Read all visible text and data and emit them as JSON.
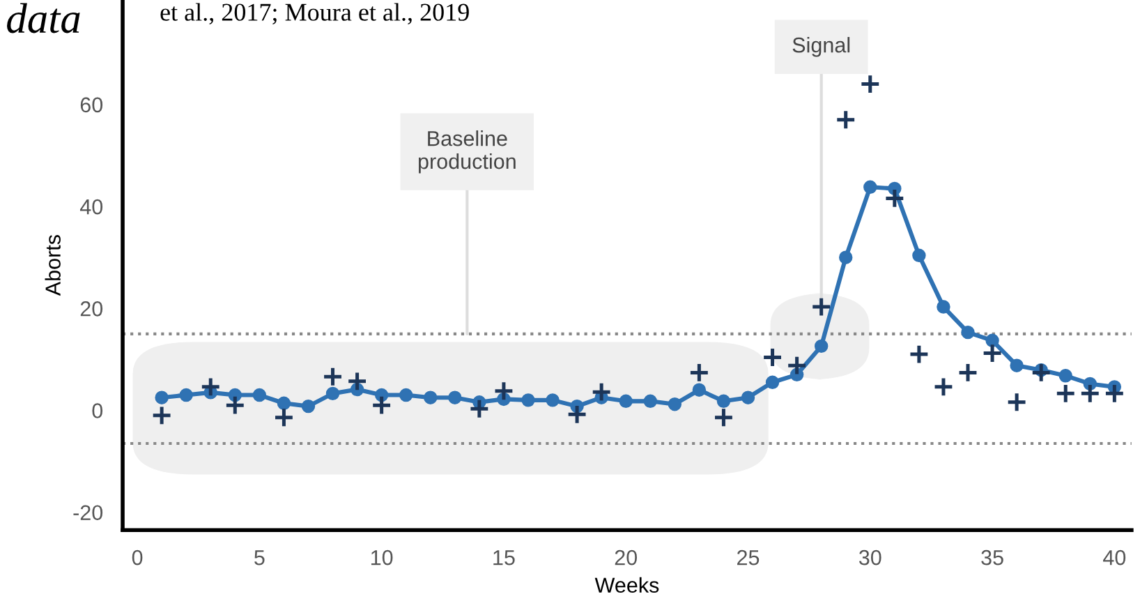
{
  "chart_data": {
    "type": "line",
    "xlabel": "Weeks",
    "ylabel": "Aborts",
    "annotations": [
      {
        "text": "Baseline\nproduction",
        "x": 13.5,
        "y": 15
      },
      {
        "text": "Signal",
        "x": 28,
        "y": 20
      },
      "data",
      "et al., 2017; Moura et al., 2019"
    ],
    "series": [
      {
        "color": "#2f72b3",
        "marker": "circle",
        "x": [
          1,
          2,
          3,
          4,
          5,
          6,
          7,
          8,
          9,
          10,
          11,
          12,
          13,
          14,
          15,
          16,
          17,
          18,
          19,
          20,
          21,
          22,
          23,
          24,
          25,
          26,
          27,
          28,
          29,
          30,
          31,
          32,
          33,
          34,
          35,
          36,
          37,
          38,
          39,
          40
        ],
        "values": [
          2.5,
          3,
          3.5,
          3,
          3,
          1.4,
          0.8,
          3.3,
          4.1,
          3,
          3,
          2.5,
          2.5,
          1.6,
          2.2,
          2,
          2,
          0.8,
          2.5,
          1.8,
          1.8,
          1.2,
          4,
          1.8,
          2.5,
          5.5,
          7,
          12.6,
          30,
          43.8,
          43.5,
          30.4,
          20.3,
          15.3,
          13.7,
          8.8,
          7.9,
          6.8,
          5.2,
          4.6
        ]
      },
      {
        "type": "scatter",
        "color": "#1c3558",
        "marker": "cross",
        "x": [
          1,
          3,
          4,
          6,
          8,
          9,
          10,
          14,
          15,
          18,
          19,
          23,
          24,
          26,
          27,
          28,
          29,
          30,
          31,
          32,
          33,
          34,
          35,
          36,
          37,
          38,
          39,
          40
        ],
        "values": [
          -1,
          4.6,
          1,
          -1.4,
          6.6,
          5.7,
          1,
          0.3,
          3.8,
          -0.8,
          3.6,
          7.4,
          -1.4,
          10.4,
          8.8,
          20.3,
          57,
          64,
          41.6,
          11,
          4.6,
          7.4,
          11.2,
          1.6,
          7.4,
          3.3,
          3.3,
          3.3
        ]
      }
    ],
    "ref_lines": [
      {
        "axis": "y",
        "value": 15,
        "color": "#888888",
        "line_style": "dotted"
      },
      {
        "axis": "y",
        "value": -6.5,
        "color": "#888888",
        "line_style": "dotted"
      }
    ],
    "xlim": [
      -0.6,
      40.7
    ],
    "ylim": [
      -23.5,
      80.5
    ],
    "xticks": [
      0,
      5,
      10,
      15,
      20,
      25,
      30,
      35,
      40
    ],
    "yticks": [
      -20,
      0,
      20,
      40,
      60
    ],
    "grid": false
  }
}
